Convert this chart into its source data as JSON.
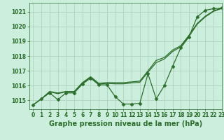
{
  "xlabel": "Graphe pression niveau de la mer (hPa)",
  "xlim": [
    -0.5,
    23
  ],
  "ylim": [
    1014.4,
    1021.6
  ],
  "yticks": [
    1015,
    1016,
    1017,
    1018,
    1019,
    1020,
    1021
  ],
  "xticks": [
    0,
    1,
    2,
    3,
    4,
    5,
    6,
    7,
    8,
    9,
    10,
    11,
    12,
    13,
    14,
    15,
    16,
    17,
    18,
    19,
    20,
    21,
    22,
    23
  ],
  "bg_color": "#cceedd",
  "grid_color": "#aaccbb",
  "line_color": "#2d6e2d",
  "measured": [
    1014.7,
    1015.1,
    1015.5,
    1015.05,
    1015.5,
    1015.5,
    1016.1,
    1016.5,
    1016.05,
    1016.05,
    1015.25,
    1014.75,
    1014.75,
    1014.8,
    1016.8,
    1015.1,
    1016.0,
    1017.3,
    1018.55,
    1019.3,
    1020.65,
    1021.1,
    1021.2,
    1021.25
  ],
  "upper1": [
    1014.7,
    1015.1,
    1015.6,
    1015.5,
    1015.6,
    1015.6,
    1016.2,
    1016.6,
    1016.15,
    1016.2,
    1016.2,
    1016.2,
    1016.25,
    1016.3,
    1017.0,
    1017.7,
    1017.9,
    1018.4,
    1018.7,
    1019.4,
    1020.2,
    1020.7,
    1021.05,
    1021.25
  ],
  "upper2": [
    1014.7,
    1015.1,
    1015.58,
    1015.45,
    1015.58,
    1015.58,
    1016.15,
    1016.55,
    1016.1,
    1016.15,
    1016.12,
    1016.12,
    1016.18,
    1016.22,
    1016.9,
    1017.55,
    1017.8,
    1018.3,
    1018.62,
    1019.32,
    1020.15,
    1020.65,
    1021.02,
    1021.22
  ],
  "line_width": 0.9,
  "marker_size": 2.5,
  "tick_fontsize": 5.5,
  "xlabel_fontsize": 7.0
}
